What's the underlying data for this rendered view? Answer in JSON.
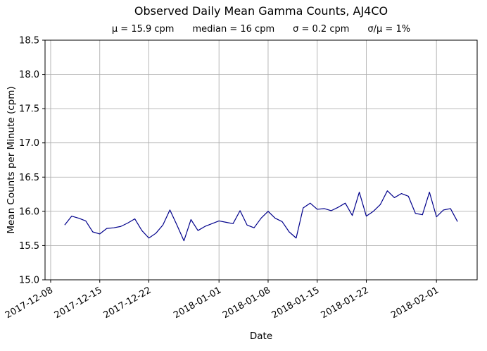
{
  "chart_data": {
    "type": "line",
    "title": "Observed Daily Mean Gamma Counts, AJ4CO",
    "stats": [
      "μ = 15.9 cpm",
      "median = 16 cpm",
      "σ = 0.2 cpm",
      "σ/μ = 1%"
    ],
    "xlabel": "Date",
    "ylabel": "Mean Counts per Minute (cpm)",
    "ylim": [
      15.0,
      18.5
    ],
    "yticks": [
      15.0,
      15.5,
      16.0,
      16.5,
      17.0,
      17.5,
      18.0,
      18.5
    ],
    "xticks": [
      "2017-12-08",
      "2017-12-15",
      "2017-12-22",
      "2018-01-01",
      "2018-01-08",
      "2018-01-15",
      "2018-01-22",
      "2018-02-01"
    ],
    "x_tick_rotation_deg": 30,
    "grid": true,
    "legend_position": "none",
    "line_color": "#00008b",
    "grid_color": "#b0b0b0",
    "x_margin_days": 2.8,
    "series": [
      {
        "name": "Observed daily mean gamma counts (cpm)",
        "x": [
          "2017-12-10",
          "2017-12-11",
          "2017-12-12",
          "2017-12-13",
          "2017-12-14",
          "2017-12-15",
          "2017-12-16",
          "2017-12-17",
          "2017-12-18",
          "2017-12-19",
          "2017-12-20",
          "2017-12-21",
          "2017-12-22",
          "2017-12-23",
          "2017-12-24",
          "2017-12-25",
          "2017-12-26",
          "2017-12-27",
          "2017-12-28",
          "2017-12-29",
          "2017-12-30",
          "2017-12-31",
          "2018-01-01",
          "2018-01-02",
          "2018-01-03",
          "2018-01-04",
          "2018-01-05",
          "2018-01-06",
          "2018-01-07",
          "2018-01-08",
          "2018-01-09",
          "2018-01-10",
          "2018-01-11",
          "2018-01-12",
          "2018-01-13",
          "2018-01-14",
          "2018-01-15",
          "2018-01-16",
          "2018-01-17",
          "2018-01-18",
          "2018-01-19",
          "2018-01-20",
          "2018-01-21",
          "2018-01-22",
          "2018-01-23",
          "2018-01-24",
          "2018-01-25",
          "2018-01-26",
          "2018-01-27",
          "2018-01-28",
          "2018-01-29",
          "2018-01-30",
          "2018-01-31",
          "2018-02-01",
          "2018-02-02",
          "2018-02-03",
          "2018-02-04"
        ],
        "y": [
          15.8,
          15.93,
          15.9,
          15.86,
          15.7,
          15.67,
          15.75,
          15.76,
          15.78,
          15.83,
          15.89,
          15.72,
          15.61,
          15.68,
          15.8,
          16.02,
          15.8,
          15.57,
          15.88,
          15.72,
          15.78,
          15.82,
          15.86,
          15.84,
          15.82,
          16.01,
          15.8,
          15.76,
          15.9,
          16.0,
          15.9,
          15.85,
          15.7,
          15.61,
          16.05,
          16.12,
          16.03,
          16.04,
          16.01,
          16.06,
          16.12,
          15.94,
          16.28,
          15.93,
          16.0,
          16.1,
          16.3,
          16.2,
          16.26,
          16.22,
          15.97,
          15.95,
          16.28,
          15.92,
          16.02,
          16.04,
          15.85
        ]
      }
    ]
  }
}
